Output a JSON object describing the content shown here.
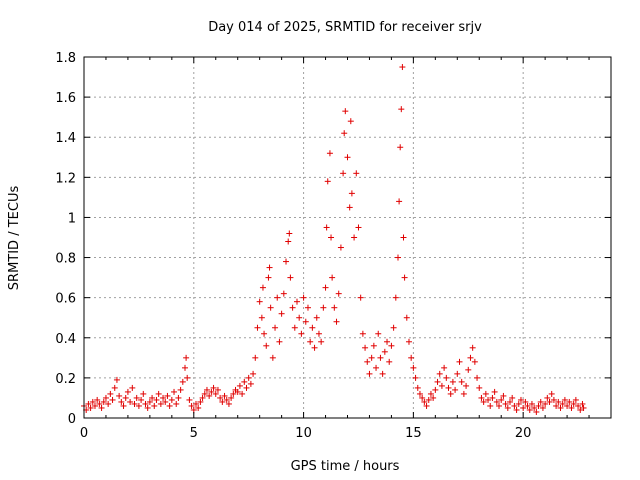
{
  "chart_data": {
    "type": "scatter",
    "title": "Day 014 of 2025, SRMTID for receiver srjv",
    "xlabel": "GPS time / hours",
    "ylabel": "SRMTID / TECUs",
    "xlim": [
      0,
      24
    ],
    "ylim": [
      0,
      1.8
    ],
    "xticks": [
      0,
      5,
      10,
      15,
      20
    ],
    "xtick_labels": [
      "0",
      "5",
      "10",
      "15",
      "20"
    ],
    "yticks": [
      0,
      0.2,
      0.4,
      0.6,
      0.8,
      1.0,
      1.2,
      1.4,
      1.6,
      1.8
    ],
    "ytick_labels": [
      "0",
      "0.2",
      "0.4",
      "0.6",
      "0.8",
      "1",
      "1.2",
      "1.4",
      "1.6",
      "1.8"
    ],
    "grid": true,
    "marker": "+",
    "color": "#e00000",
    "series": [
      {
        "name": "SRMTID",
        "points": [
          [
            0.0,
            0.06
          ],
          [
            0.1,
            0.04
          ],
          [
            0.2,
            0.07
          ],
          [
            0.3,
            0.05
          ],
          [
            0.4,
            0.08
          ],
          [
            0.5,
            0.06
          ],
          [
            0.6,
            0.09
          ],
          [
            0.7,
            0.07
          ],
          [
            0.8,
            0.05
          ],
          [
            0.9,
            0.08
          ],
          [
            1.0,
            0.1
          ],
          [
            1.1,
            0.07
          ],
          [
            1.2,
            0.12
          ],
          [
            1.3,
            0.09
          ],
          [
            1.4,
            0.15
          ],
          [
            1.5,
            0.19
          ],
          [
            1.6,
            0.11
          ],
          [
            1.7,
            0.08
          ],
          [
            1.8,
            0.06
          ],
          [
            1.9,
            0.1
          ],
          [
            2.0,
            0.13
          ],
          [
            2.1,
            0.08
          ],
          [
            2.2,
            0.15
          ],
          [
            2.3,
            0.07
          ],
          [
            2.4,
            0.1
          ],
          [
            2.5,
            0.06
          ],
          [
            2.6,
            0.09
          ],
          [
            2.7,
            0.12
          ],
          [
            2.8,
            0.07
          ],
          [
            2.9,
            0.05
          ],
          [
            3.0,
            0.08
          ],
          [
            3.1,
            0.1
          ],
          [
            3.2,
            0.06
          ],
          [
            3.3,
            0.09
          ],
          [
            3.4,
            0.12
          ],
          [
            3.5,
            0.07
          ],
          [
            3.6,
            0.1
          ],
          [
            3.7,
            0.08
          ],
          [
            3.8,
            0.11
          ],
          [
            3.9,
            0.06
          ],
          [
            4.0,
            0.09
          ],
          [
            4.1,
            0.13
          ],
          [
            4.2,
            0.07
          ],
          [
            4.3,
            0.1
          ],
          [
            4.4,
            0.14
          ],
          [
            4.5,
            0.18
          ],
          [
            4.6,
            0.25
          ],
          [
            4.65,
            0.3
          ],
          [
            4.7,
            0.2
          ],
          [
            4.8,
            0.09
          ],
          [
            4.9,
            0.06
          ],
          [
            5.0,
            0.04
          ],
          [
            5.1,
            0.07
          ],
          [
            5.2,
            0.05
          ],
          [
            5.3,
            0.08
          ],
          [
            5.4,
            0.1
          ],
          [
            5.5,
            0.12
          ],
          [
            5.6,
            0.14
          ],
          [
            5.7,
            0.11
          ],
          [
            5.8,
            0.13
          ],
          [
            5.9,
            0.15
          ],
          [
            6.0,
            0.12
          ],
          [
            6.1,
            0.14
          ],
          [
            6.2,
            0.1
          ],
          [
            6.3,
            0.08
          ],
          [
            6.4,
            0.11
          ],
          [
            6.5,
            0.09
          ],
          [
            6.6,
            0.07
          ],
          [
            6.7,
            0.1
          ],
          [
            6.8,
            0.12
          ],
          [
            6.9,
            0.14
          ],
          [
            7.0,
            0.13
          ],
          [
            7.1,
            0.16
          ],
          [
            7.2,
            0.12
          ],
          [
            7.3,
            0.18
          ],
          [
            7.4,
            0.15
          ],
          [
            7.5,
            0.2
          ],
          [
            7.6,
            0.17
          ],
          [
            7.7,
            0.22
          ],
          [
            7.8,
            0.3
          ],
          [
            7.9,
            0.45
          ],
          [
            8.0,
            0.58
          ],
          [
            8.1,
            0.5
          ],
          [
            8.15,
            0.65
          ],
          [
            8.2,
            0.42
          ],
          [
            8.3,
            0.36
          ],
          [
            8.4,
            0.7
          ],
          [
            8.45,
            0.75
          ],
          [
            8.5,
            0.55
          ],
          [
            8.6,
            0.3
          ],
          [
            8.7,
            0.45
          ],
          [
            8.8,
            0.6
          ],
          [
            8.9,
            0.38
          ],
          [
            9.0,
            0.52
          ],
          [
            9.1,
            0.62
          ],
          [
            9.2,
            0.78
          ],
          [
            9.3,
            0.88
          ],
          [
            9.35,
            0.92
          ],
          [
            9.4,
            0.7
          ],
          [
            9.5,
            0.55
          ],
          [
            9.6,
            0.45
          ],
          [
            9.7,
            0.58
          ],
          [
            9.8,
            0.5
          ],
          [
            9.9,
            0.42
          ],
          [
            10.0,
            0.6
          ],
          [
            10.1,
            0.48
          ],
          [
            10.2,
            0.55
          ],
          [
            10.3,
            0.38
          ],
          [
            10.4,
            0.45
          ],
          [
            10.5,
            0.35
          ],
          [
            10.6,
            0.5
          ],
          [
            10.7,
            0.42
          ],
          [
            10.8,
            0.38
          ],
          [
            10.9,
            0.55
          ],
          [
            11.0,
            0.65
          ],
          [
            11.05,
            0.95
          ],
          [
            11.1,
            1.18
          ],
          [
            11.2,
            1.32
          ],
          [
            11.25,
            0.9
          ],
          [
            11.3,
            0.7
          ],
          [
            11.4,
            0.55
          ],
          [
            11.5,
            0.48
          ],
          [
            11.6,
            0.62
          ],
          [
            11.7,
            0.85
          ],
          [
            11.8,
            1.22
          ],
          [
            11.85,
            1.42
          ],
          [
            11.9,
            1.53
          ],
          [
            12.0,
            1.3
          ],
          [
            12.1,
            1.05
          ],
          [
            12.15,
            1.48
          ],
          [
            12.2,
            1.12
          ],
          [
            12.3,
            0.9
          ],
          [
            12.4,
            1.22
          ],
          [
            12.5,
            0.95
          ],
          [
            12.6,
            0.6
          ],
          [
            12.7,
            0.42
          ],
          [
            12.8,
            0.35
          ],
          [
            12.9,
            0.28
          ],
          [
            13.0,
            0.22
          ],
          [
            13.1,
            0.3
          ],
          [
            13.2,
            0.36
          ],
          [
            13.3,
            0.25
          ],
          [
            13.4,
            0.42
          ],
          [
            13.5,
            0.3
          ],
          [
            13.6,
            0.22
          ],
          [
            13.7,
            0.33
          ],
          [
            13.8,
            0.38
          ],
          [
            13.9,
            0.28
          ],
          [
            14.0,
            0.36
          ],
          [
            14.1,
            0.45
          ],
          [
            14.2,
            0.6
          ],
          [
            14.3,
            0.8
          ],
          [
            14.35,
            1.08
          ],
          [
            14.4,
            1.35
          ],
          [
            14.45,
            1.54
          ],
          [
            14.5,
            1.75
          ],
          [
            14.55,
            0.9
          ],
          [
            14.6,
            0.7
          ],
          [
            14.7,
            0.5
          ],
          [
            14.8,
            0.38
          ],
          [
            14.9,
            0.3
          ],
          [
            15.0,
            0.25
          ],
          [
            15.1,
            0.2
          ],
          [
            15.2,
            0.15
          ],
          [
            15.3,
            0.12
          ],
          [
            15.4,
            0.1
          ],
          [
            15.5,
            0.08
          ],
          [
            15.6,
            0.06
          ],
          [
            15.7,
            0.09
          ],
          [
            15.8,
            0.12
          ],
          [
            15.9,
            0.1
          ],
          [
            16.0,
            0.14
          ],
          [
            16.1,
            0.18
          ],
          [
            16.2,
            0.22
          ],
          [
            16.3,
            0.16
          ],
          [
            16.4,
            0.25
          ],
          [
            16.5,
            0.2
          ],
          [
            16.6,
            0.15
          ],
          [
            16.7,
            0.12
          ],
          [
            16.8,
            0.18
          ],
          [
            16.9,
            0.14
          ],
          [
            17.0,
            0.22
          ],
          [
            17.1,
            0.28
          ],
          [
            17.2,
            0.18
          ],
          [
            17.3,
            0.12
          ],
          [
            17.4,
            0.16
          ],
          [
            17.5,
            0.24
          ],
          [
            17.6,
            0.3
          ],
          [
            17.7,
            0.35
          ],
          [
            17.8,
            0.28
          ],
          [
            17.9,
            0.2
          ],
          [
            18.0,
            0.15
          ],
          [
            18.1,
            0.1
          ],
          [
            18.2,
            0.08
          ],
          [
            18.3,
            0.12
          ],
          [
            18.4,
            0.09
          ],
          [
            18.5,
            0.06
          ],
          [
            18.6,
            0.1
          ],
          [
            18.7,
            0.13
          ],
          [
            18.8,
            0.08
          ],
          [
            18.9,
            0.06
          ],
          [
            19.0,
            0.09
          ],
          [
            19.1,
            0.11
          ],
          [
            19.2,
            0.07
          ],
          [
            19.3,
            0.05
          ],
          [
            19.4,
            0.08
          ],
          [
            19.5,
            0.1
          ],
          [
            19.6,
            0.06
          ],
          [
            19.7,
            0.04
          ],
          [
            19.8,
            0.07
          ],
          [
            19.9,
            0.09
          ],
          [
            20.0,
            0.05
          ],
          [
            20.1,
            0.08
          ],
          [
            20.2,
            0.06
          ],
          [
            20.3,
            0.04
          ],
          [
            20.4,
            0.07
          ],
          [
            20.5,
            0.05
          ],
          [
            20.6,
            0.03
          ],
          [
            20.7,
            0.06
          ],
          [
            20.8,
            0.08
          ],
          [
            20.9,
            0.05
          ],
          [
            21.0,
            0.07
          ],
          [
            21.1,
            0.1
          ],
          [
            21.2,
            0.08
          ],
          [
            21.3,
            0.12
          ],
          [
            21.4,
            0.09
          ],
          [
            21.5,
            0.06
          ],
          [
            21.6,
            0.08
          ],
          [
            21.7,
            0.05
          ],
          [
            21.8,
            0.07
          ],
          [
            21.9,
            0.09
          ],
          [
            22.0,
            0.06
          ],
          [
            22.1,
            0.08
          ],
          [
            22.2,
            0.05
          ],
          [
            22.3,
            0.07
          ],
          [
            22.4,
            0.09
          ],
          [
            22.5,
            0.06
          ],
          [
            22.6,
            0.04
          ],
          [
            22.7,
            0.07
          ],
          [
            22.75,
            0.05
          ]
        ]
      }
    ]
  }
}
